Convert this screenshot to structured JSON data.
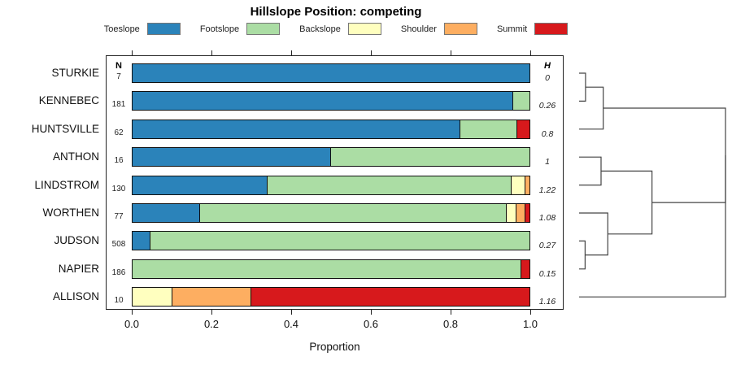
{
  "title": "Hillslope Position: competing",
  "axis": {
    "label": "Proportion"
  },
  "table": {
    "n_header": "N",
    "h_header": "H"
  },
  "chart_data": {
    "type": "bar",
    "orientation": "horizontal-stacked",
    "title": "Hillslope Position: competing",
    "xlabel": "Proportion",
    "xlim": [
      0,
      1
    ],
    "axis_ticks": [
      {
        "v": 0.0,
        "label": "0.0"
      },
      {
        "v": 0.2,
        "label": "0.2"
      },
      {
        "v": 0.4,
        "label": "0.4"
      },
      {
        "v": 0.6,
        "label": "0.6"
      },
      {
        "v": 0.8,
        "label": "0.8"
      },
      {
        "v": 1.0,
        "label": "1.0"
      }
    ],
    "categories": [
      "STURKIE",
      "KENNEBEC",
      "HUNTSVILLE",
      "ANTHON",
      "LINDSTROM",
      "WORTHEN",
      "JUDSON",
      "NAPIER",
      "ALLISON"
    ],
    "sample_counts": [
      7,
      181,
      62,
      16,
      130,
      77,
      508,
      186,
      10
    ],
    "shannon_entropy": [
      "0",
      "0.26",
      "0.8",
      "1",
      "1.22",
      "1.08",
      "0.27",
      "0.15",
      "1.16"
    ],
    "series": [
      {
        "name": "Toeslope",
        "color": "#2B83BA",
        "values": [
          1.0,
          0.96,
          0.825,
          0.5,
          0.34,
          0.17,
          0.045,
          0.0,
          0.0
        ]
      },
      {
        "name": "Footslope",
        "color": "#ABDDA4",
        "values": [
          0.0,
          0.04,
          0.145,
          0.5,
          0.615,
          0.772,
          0.955,
          0.98,
          0.0
        ]
      },
      {
        "name": "Backslope",
        "color": "#FFFFBF",
        "values": [
          0.0,
          0.0,
          0.0,
          0.0,
          0.035,
          0.025,
          0.0,
          0.0,
          0.1
        ]
      },
      {
        "name": "Shoulder",
        "color": "#FDAE61",
        "values": [
          0.0,
          0.0,
          0.0,
          0.0,
          0.01,
          0.023,
          0.0,
          0.0,
          0.2
        ]
      },
      {
        "name": "Summit",
        "color": "#D7191C",
        "values": [
          0.0,
          0.0,
          0.03,
          0.0,
          0.0,
          0.01,
          0.0,
          0.02,
          0.7
        ]
      }
    ]
  },
  "dendrogram": {
    "leaves": [
      "STURKIE",
      "KENNEBEC",
      "HUNTSVILLE",
      "ANTHON",
      "LINDSTROM",
      "WORTHEN",
      "JUDSON",
      "NAPIER",
      "ALLISON"
    ],
    "merges": [
      {
        "id": "M0",
        "children": [
          "L0",
          "L1"
        ],
        "h": 0.044
      },
      {
        "id": "M1",
        "children": [
          "M0",
          "L2"
        ],
        "h": 0.165
      },
      {
        "id": "M2",
        "children": [
          "L3",
          "L4"
        ],
        "h": 0.15
      },
      {
        "id": "M3",
        "children": [
          "L6",
          "L7"
        ],
        "h": 0.041
      },
      {
        "id": "M4",
        "children": [
          "L5",
          "M3"
        ],
        "h": 0.196
      },
      {
        "id": "M5",
        "children": [
          "M2",
          "M4"
        ],
        "h": 0.498
      },
      {
        "id": "M6",
        "children": [
          "M1",
          "M5"
        ],
        "h": 1.0
      },
      {
        "id": "M7",
        "children": [
          "M6",
          "L8"
        ],
        "h": 1.0
      }
    ]
  }
}
